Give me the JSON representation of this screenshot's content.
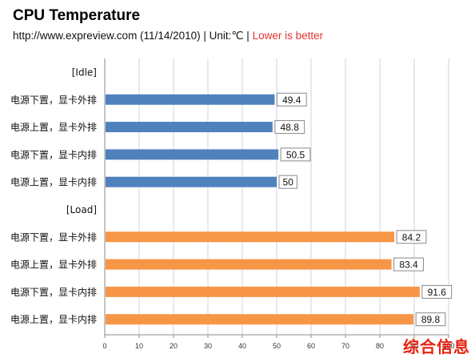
{
  "header": {
    "title": "CPU Temperature",
    "subtitle_source": "http://www.expreview.com  (11/14/2010) | Unit:℃ | ",
    "subtitle_note": "Lower is better"
  },
  "watermark": "综合信息",
  "colors": {
    "idle": "#4f81bd",
    "load": "#f79646",
    "grid": "#c9d4e8",
    "axis": "#888888"
  },
  "chart_data": {
    "type": "bar",
    "orientation": "horizontal",
    "title": "CPU Temperature",
    "xlim": [
      0,
      100
    ],
    "x_ticks": [
      0,
      10,
      20,
      30,
      40,
      50,
      60,
      70,
      80,
      90,
      100
    ],
    "grid": true,
    "groups": [
      {
        "label": "[Idle]",
        "color_key": "idle",
        "categories": [
          "电源下置，显卡外排",
          "电源上置，显卡外排",
          "电源下置，显卡内排",
          "电源上置，显卡内排"
        ],
        "values": [
          49.4,
          48.8,
          50.5,
          50
        ]
      },
      {
        "label": "[Load]",
        "color_key": "load",
        "categories": [
          "电源下置，显卡外排",
          "电源上置，显卡外排",
          "电源下置，显卡内排",
          "电源上置，显卡内排"
        ],
        "values": [
          84.2,
          83.4,
          91.6,
          89.8
        ]
      }
    ]
  }
}
